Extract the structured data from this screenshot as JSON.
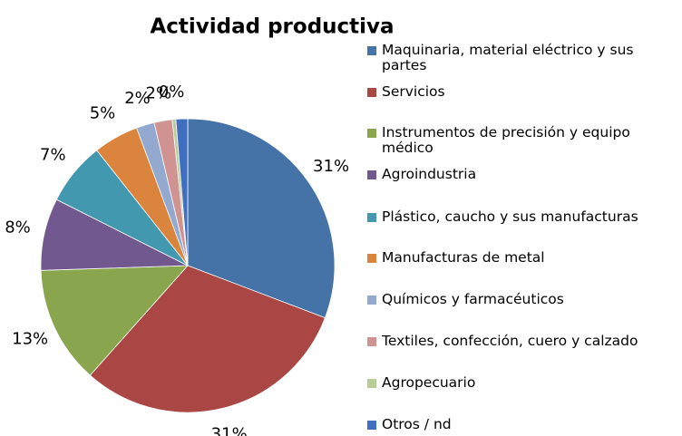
{
  "chart_data": {
    "type": "pie",
    "title": "Actividad productiva",
    "categories": [
      "Maquinaria, material eléctrico y sus partes",
      "Servicios",
      "Instrumentos de precisión y equipo médico",
      "Agroindustria",
      "Plástico, caucho y sus manufacturas",
      "Manufacturas de metal",
      "Químicos y farmacéuticos",
      "Textiles, confección, cuero y calzado",
      "Agropecuario",
      "Otros / nd"
    ],
    "values": [
      31,
      31,
      13,
      8,
      7,
      5,
      2,
      2,
      0.4,
      1.3
    ],
    "value_labels": [
      "31%",
      "31%",
      "13%",
      "8%",
      "7%",
      "5%",
      "2%",
      "2%",
      "0%",
      null
    ],
    "colors": [
      "#4572a7",
      "#aa4643",
      "#89a54e",
      "#71588f",
      "#4198af",
      "#db843d",
      "#93a9cf",
      "#d19392",
      "#b9cd96",
      "#3e6fc1"
    ]
  }
}
